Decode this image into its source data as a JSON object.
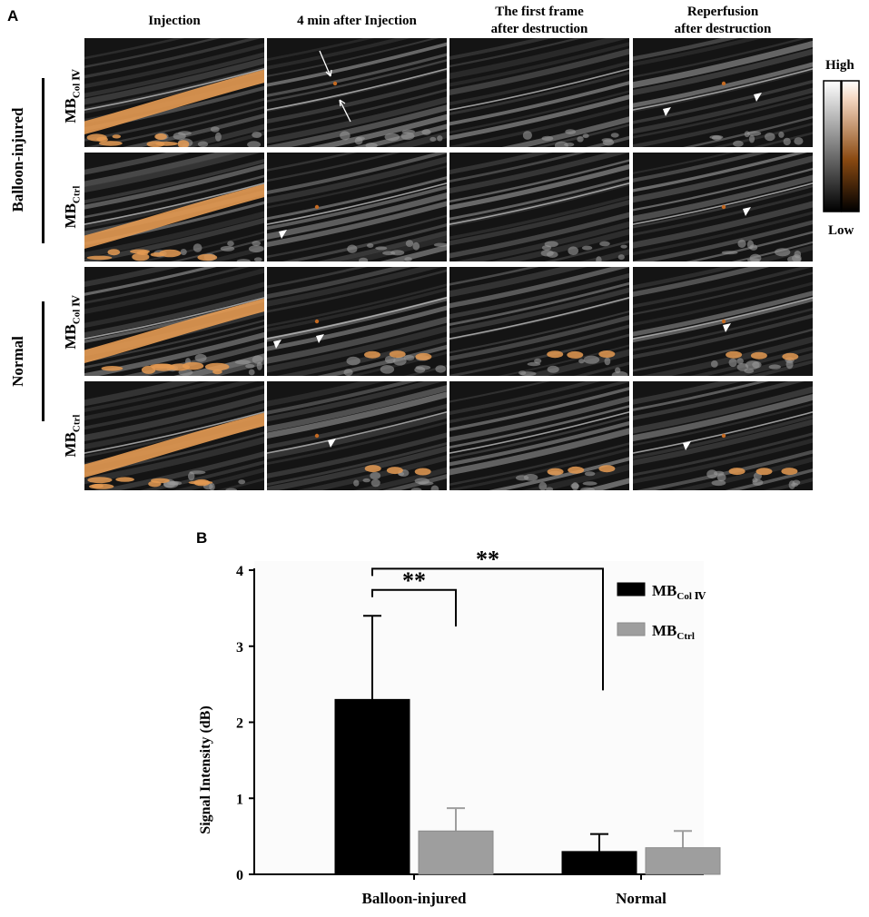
{
  "panel_a": {
    "letter": "A",
    "column_headers": [
      {
        "line1": "Injection",
        "line2": ""
      },
      {
        "line1": "4 min after Injection",
        "line2": ""
      },
      {
        "line1": "The first frame",
        "line2": "after destruction"
      },
      {
        "line1": "Reperfusion",
        "line2": "after destruction"
      }
    ],
    "group_labels": [
      "Balloon-injured",
      "Normal"
    ],
    "row_labels": [
      {
        "base": "MB",
        "sub": "Col Ⅳ"
      },
      {
        "base": "MB",
        "sub": "Ctrl"
      },
      {
        "base": "MB",
        "sub": "Col Ⅳ"
      },
      {
        "base": "MB",
        "sub": "Ctrl"
      }
    ],
    "scale_bar": {
      "high_label": "High",
      "low_label": "Low",
      "colors": [
        "#ffffff",
        "#000000",
        "#f2d3bc",
        "#8a4a12",
        "#000000"
      ]
    },
    "image_description_colors": {
      "tissue": "#3a3a3a",
      "contrast": "#e49a52",
      "arrow": "#ffffff"
    }
  },
  "panel_b": {
    "letter": "B"
  },
  "chart_data": {
    "type": "bar",
    "categories": [
      "Balloon-injured",
      "Normal"
    ],
    "series": [
      {
        "name": "MB",
        "name_sub": "Col Ⅳ",
        "color": "#000000",
        "values": [
          2.3,
          0.3
        ],
        "errors": [
          1.1,
          0.23
        ]
      },
      {
        "name": "MB",
        "name_sub": "Ctrl",
        "color": "#9e9e9e",
        "values": [
          0.57,
          0.35
        ],
        "errors": [
          0.3,
          0.22
        ]
      }
    ],
    "ylabel": "Signal Intensity (dB)",
    "xlabel": "",
    "title": "",
    "ylim": [
      0,
      4
    ],
    "yticks": [
      0,
      1,
      2,
      3,
      4
    ],
    "grid": false,
    "legend_position": "top-right",
    "significance": [
      {
        "label": "**",
        "from": "Balloon-injured MB Col Ⅳ",
        "to": "Balloon-injured MB Ctrl"
      },
      {
        "label": "**",
        "from": "Balloon-injured MB Col Ⅳ",
        "to": "Normal MB Col Ⅳ"
      }
    ]
  }
}
